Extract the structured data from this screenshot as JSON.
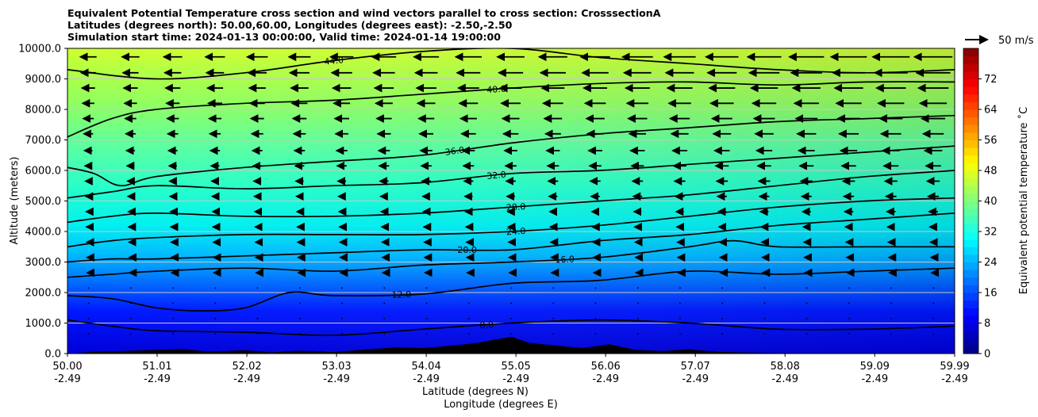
{
  "title": {
    "line1": "Equivalent Potential Temperature cross section and wind vectors parallel to cross section: CrosssectionA",
    "line2": "Latitudes (degrees north): 50.00,60.00, Longitudes (degrees east): -2.50,-2.50",
    "line3": "Simulation start time: 2024-01-13 00:00:00, Valid time: 2024-01-14 19:00:00"
  },
  "chart_data": {
    "type": "heatmap",
    "subtype": "filled-contour cross section with contour lines and wind vectors",
    "ylabel": "Altitude (meters)",
    "xlabel_line1": "Latitude (degrees N)",
    "xlabel_line2": "Longitude (degrees E)",
    "xlim": [
      50.0,
      59.99
    ],
    "ylim": [
      0,
      10000
    ],
    "grid": "horizontal lines",
    "x_ticks": [
      {
        "value": 50.0,
        "lat": "50.00",
        "lon": "-2.49"
      },
      {
        "value": 51.01,
        "lat": "51.01",
        "lon": "-2.49"
      },
      {
        "value": 52.02,
        "lat": "52.02",
        "lon": "-2.49"
      },
      {
        "value": 53.03,
        "lat": "53.03",
        "lon": "-2.49"
      },
      {
        "value": 54.04,
        "lat": "54.04",
        "lon": "-2.49"
      },
      {
        "value": 55.05,
        "lat": "55.05",
        "lon": "-2.49"
      },
      {
        "value": 56.06,
        "lat": "56.06",
        "lon": "-2.49"
      },
      {
        "value": 57.07,
        "lat": "57.07",
        "lon": "-2.49"
      },
      {
        "value": 58.08,
        "lat": "58.08",
        "lon": "-2.49"
      },
      {
        "value": 59.09,
        "lat": "59.09",
        "lon": "-2.49"
      },
      {
        "value": 59.99,
        "lat": "59.99",
        "lon": "-2.49"
      }
    ],
    "y_ticks": [
      {
        "value": 0,
        "label": "0.0"
      },
      {
        "value": 1000,
        "label": "1000.0"
      },
      {
        "value": 2000,
        "label": "2000.0"
      },
      {
        "value": 3000,
        "label": "3000.0"
      },
      {
        "value": 4000,
        "label": "4000.0"
      },
      {
        "value": 5000,
        "label": "5000.0"
      },
      {
        "value": 6000,
        "label": "6000.0"
      },
      {
        "value": 7000,
        "label": "7000.0"
      },
      {
        "value": 8000,
        "label": "8000.0"
      },
      {
        "value": 9000,
        "label": "9000.0"
      },
      {
        "value": 10000,
        "label": "10000.0"
      }
    ],
    "colorbar": {
      "label": "Equivalent potential temperature ˚C",
      "range": [
        0,
        80
      ],
      "tick_values": [
        0,
        8,
        16,
        24,
        32,
        40,
        48,
        56,
        64,
        72
      ],
      "tick_labels": [
        "0",
        "8",
        "16",
        "24",
        "32",
        "40",
        "48",
        "56",
        "64",
        "72"
      ],
      "colormap": "jet"
    },
    "contours": [
      {
        "label": "8.0",
        "points": [
          [
            50.0,
            1100
          ],
          [
            50.5,
            900
          ],
          [
            51.0,
            750
          ],
          [
            52.0,
            700
          ],
          [
            53.0,
            600
          ],
          [
            54.0,
            800
          ],
          [
            55.0,
            1000
          ],
          [
            56.0,
            1100
          ],
          [
            57.0,
            1000
          ],
          [
            58.0,
            800
          ],
          [
            59.0,
            800
          ],
          [
            59.99,
            900
          ]
        ]
      },
      {
        "label": "12.0",
        "points": [
          [
            50.0,
            1900
          ],
          [
            50.5,
            1800
          ],
          [
            51.0,
            1500
          ],
          [
            51.5,
            1400
          ],
          [
            52.0,
            1500
          ],
          [
            52.5,
            2000
          ],
          [
            53.0,
            1900
          ],
          [
            54.0,
            1950
          ],
          [
            55.0,
            2300
          ],
          [
            56.0,
            2400
          ],
          [
            57.0,
            2700
          ],
          [
            58.0,
            2600
          ],
          [
            59.0,
            2700
          ],
          [
            59.99,
            2800
          ]
        ]
      },
      {
        "label": "16.0",
        "points": [
          [
            50.0,
            2500
          ],
          [
            50.5,
            2600
          ],
          [
            51.0,
            2700
          ],
          [
            52.0,
            2800
          ],
          [
            53.0,
            2700
          ],
          [
            54.0,
            2900
          ],
          [
            55.0,
            3000
          ],
          [
            56.0,
            3150
          ],
          [
            57.0,
            3500
          ],
          [
            57.5,
            3700
          ],
          [
            58.0,
            3500
          ],
          [
            59.0,
            3500
          ],
          [
            59.99,
            3500
          ]
        ]
      },
      {
        "label": "20.0",
        "points": [
          [
            50.0,
            3000
          ],
          [
            50.5,
            3100
          ],
          [
            51.0,
            3100
          ],
          [
            52.0,
            3200
          ],
          [
            53.0,
            3300
          ],
          [
            54.0,
            3400
          ],
          [
            55.0,
            3400
          ],
          [
            56.0,
            3700
          ],
          [
            57.0,
            3900
          ],
          [
            58.0,
            4200
          ],
          [
            59.0,
            4400
          ],
          [
            59.99,
            4600
          ]
        ]
      },
      {
        "label": "24.0",
        "points": [
          [
            50.0,
            3500
          ],
          [
            50.5,
            3700
          ],
          [
            51.0,
            3800
          ],
          [
            52.0,
            3900
          ],
          [
            53.0,
            3900
          ],
          [
            54.0,
            3900
          ],
          [
            55.0,
            4000
          ],
          [
            56.0,
            4200
          ],
          [
            57.0,
            4500
          ],
          [
            58.0,
            4800
          ],
          [
            59.0,
            5000
          ],
          [
            59.99,
            5100
          ]
        ]
      },
      {
        "label": "28.0",
        "points": [
          [
            50.0,
            4300
          ],
          [
            50.5,
            4500
          ],
          [
            51.0,
            4600
          ],
          [
            52.0,
            4500
          ],
          [
            53.0,
            4500
          ],
          [
            54.0,
            4600
          ],
          [
            55.0,
            4800
          ],
          [
            56.0,
            5000
          ],
          [
            57.0,
            5200
          ],
          [
            58.0,
            5500
          ],
          [
            59.0,
            5800
          ],
          [
            59.99,
            6000
          ]
        ]
      },
      {
        "label": "32.0",
        "points": [
          [
            50.0,
            5100
          ],
          [
            50.5,
            5300
          ],
          [
            51.0,
            5500
          ],
          [
            52.0,
            5400
          ],
          [
            53.0,
            5500
          ],
          [
            54.0,
            5600
          ],
          [
            55.0,
            5900
          ],
          [
            56.0,
            6000
          ],
          [
            57.0,
            6200
          ],
          [
            58.0,
            6400
          ],
          [
            59.0,
            6600
          ],
          [
            59.99,
            6800
          ]
        ]
      },
      {
        "label": "36.0",
        "points": [
          [
            50.0,
            6100
          ],
          [
            50.3,
            5900
          ],
          [
            50.6,
            5500
          ],
          [
            51.0,
            5800
          ],
          [
            52.0,
            6100
          ],
          [
            53.0,
            6300
          ],
          [
            54.0,
            6500
          ],
          [
            55.0,
            6900
          ],
          [
            56.0,
            7200
          ],
          [
            57.0,
            7400
          ],
          [
            58.0,
            7600
          ],
          [
            59.0,
            7700
          ],
          [
            59.99,
            7800
          ]
        ]
      },
      {
        "label": "40.0",
        "points": [
          [
            50.0,
            7100
          ],
          [
            50.5,
            7700
          ],
          [
            51.0,
            8000
          ],
          [
            52.0,
            8200
          ],
          [
            53.0,
            8300
          ],
          [
            54.0,
            8500
          ],
          [
            55.0,
            8700
          ],
          [
            56.0,
            8850
          ],
          [
            57.0,
            8900
          ],
          [
            58.0,
            8800
          ],
          [
            59.0,
            8900
          ],
          [
            59.99,
            8900
          ]
        ]
      },
      {
        "label": "44.0",
        "points": [
          [
            50.0,
            9300
          ],
          [
            51.0,
            9000
          ],
          [
            52.0,
            9200
          ],
          [
            53.0,
            9600
          ],
          [
            54.0,
            9900
          ],
          [
            55.0,
            10000
          ],
          [
            56.0,
            9700
          ],
          [
            57.0,
            9500
          ],
          [
            58.0,
            9300
          ],
          [
            59.0,
            9200
          ],
          [
            59.99,
            9300
          ]
        ]
      }
    ],
    "wind_reference": {
      "label": "50 m/s",
      "value": 50
    },
    "wind_vectors": "arrows parallel to cross section, pointing southward (toward 50N); magnitude increasing with altitude, strongest near 9000-10000 m"
  }
}
